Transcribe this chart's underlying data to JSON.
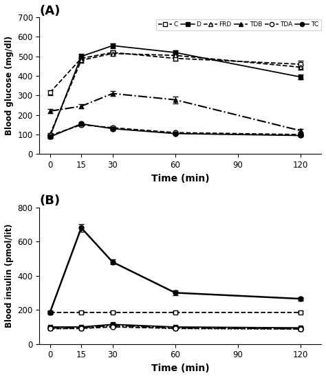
{
  "time": [
    0,
    15,
    30,
    60,
    120
  ],
  "panel_A": {
    "title": "(A)",
    "ylabel": "Blood glucose (mg/dl)",
    "xlabel": "Time (min)",
    "ylim": [
      0,
      700
    ],
    "yticks": [
      0,
      100,
      200,
      300,
      400,
      500,
      600,
      700
    ],
    "series": {
      "C": {
        "y": [
          315,
          490,
          520,
          490,
          460
        ],
        "yerr": [
          12,
          12,
          12,
          12,
          18
        ],
        "ls": "--",
        "marker": "s",
        "mfc": "white",
        "lw": 1.3
      },
      "D": {
        "y": [
          90,
          500,
          555,
          520,
          395
        ],
        "yerr": [
          8,
          12,
          12,
          12,
          12
        ],
        "ls": "-",
        "marker": "s",
        "mfc": "black",
        "lw": 1.3
      },
      "FRD": {
        "y": [
          100,
          480,
          515,
          505,
          445
        ],
        "yerr": [
          8,
          12,
          12,
          12,
          12
        ],
        "ls": "--",
        "marker": "^",
        "mfc": "white",
        "lw": 1.3
      },
      "TDB": {
        "y": [
          220,
          245,
          310,
          278,
          120
        ],
        "yerr": [
          12,
          12,
          12,
          18,
          8
        ],
        "ls": "-.",
        "marker": "^",
        "mfc": "black",
        "lw": 1.5
      },
      "TDA": {
        "y": [
          95,
          150,
          135,
          110,
          100
        ],
        "yerr": [
          6,
          8,
          8,
          6,
          6
        ],
        "ls": "--",
        "marker": "o",
        "mfc": "white",
        "lw": 1.3
      },
      "TC": {
        "y": [
          88,
          155,
          130,
          105,
          95
        ],
        "yerr": [
          6,
          8,
          8,
          6,
          6
        ],
        "ls": "-",
        "marker": "o",
        "mfc": "black",
        "lw": 1.3
      }
    }
  },
  "panel_B": {
    "title": "(B)",
    "ylabel": "Blood insulin (pmol/lit)",
    "xlabel": "Time (min)",
    "ylim": [
      0,
      800
    ],
    "yticks": [
      0,
      200,
      400,
      600,
      800
    ],
    "series": {
      "C": {
        "y": [
          185,
          185,
          185,
          185,
          185
        ],
        "yerr": [
          6,
          6,
          6,
          6,
          6
        ],
        "ls": "--",
        "marker": "s",
        "mfc": "white",
        "lw": 1.3
      },
      "D": {
        "y": [
          100,
          100,
          115,
          100,
          95
        ],
        "yerr": [
          4,
          4,
          4,
          4,
          4
        ],
        "ls": "-",
        "marker": "s",
        "mfc": "black",
        "lw": 1.3
      },
      "FRD": {
        "y": [
          95,
          95,
          110,
          95,
          90
        ],
        "yerr": [
          4,
          4,
          4,
          4,
          4
        ],
        "ls": "-.",
        "marker": "^",
        "mfc": "black",
        "lw": 1.5
      },
      "TDB": {
        "y": [
          90,
          90,
          105,
          90,
          88
        ],
        "yerr": [
          4,
          4,
          4,
          4,
          4
        ],
        "ls": ":",
        "marker": "^",
        "mfc": "white",
        "lw": 1.3
      },
      "TDA": {
        "y": [
          90,
          92,
          100,
          92,
          88
        ],
        "yerr": [
          4,
          4,
          4,
          4,
          4
        ],
        "ls": "--",
        "marker": "o",
        "mfc": "white",
        "lw": 1.3
      },
      "TC": {
        "y": [
          185,
          680,
          480,
          300,
          265
        ],
        "yerr": [
          8,
          22,
          14,
          14,
          10
        ],
        "ls": "-",
        "marker": "o",
        "mfc": "black",
        "lw": 1.8
      }
    }
  },
  "xticks": [
    0,
    15,
    30,
    60,
    90,
    120
  ],
  "legend_order": [
    "C",
    "D",
    "FRD",
    "TDB",
    "TDA",
    "TC"
  ],
  "color": "black",
  "capsize": 3,
  "markersize": 5
}
